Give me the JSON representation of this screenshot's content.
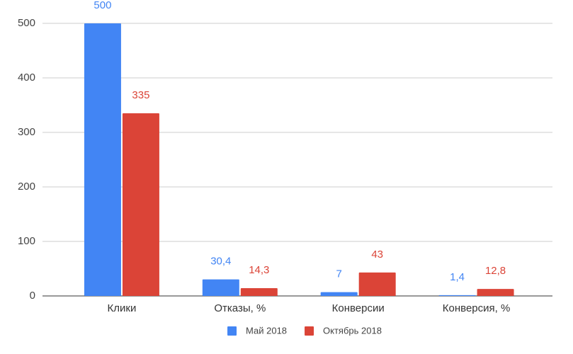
{
  "chart_data": {
    "type": "bar",
    "categories": [
      "Клики",
      "Отказы, %",
      "Конверсии",
      "Конверсия, %"
    ],
    "series": [
      {
        "name": "Май 2018",
        "color": "#4285f4",
        "values": [
          500,
          30.4,
          7,
          1.4
        ],
        "value_labels": [
          "500",
          "30,4",
          "7",
          "1,4"
        ]
      },
      {
        "name": "Октябрь 2018",
        "color": "#db4437",
        "values": [
          335,
          14.3,
          43,
          12.8
        ],
        "value_labels": [
          "335",
          "14,3",
          "43",
          "12,8"
        ]
      }
    ],
    "ylim": [
      0,
      500
    ],
    "yticks": [
      0,
      100,
      200,
      300,
      400,
      500
    ],
    "grid": true,
    "legend": "bottom"
  }
}
